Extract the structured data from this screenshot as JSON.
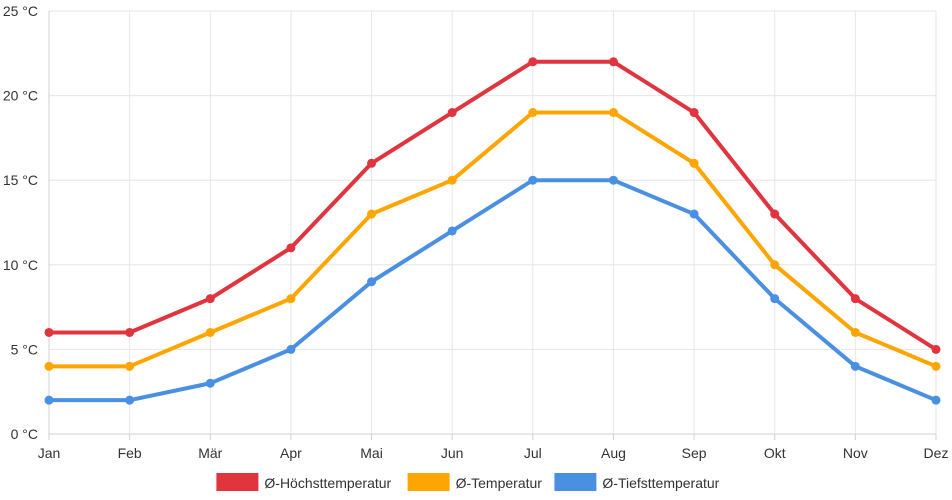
{
  "chart_data": {
    "type": "line",
    "title": "",
    "xlabel": "",
    "ylabel": "",
    "categories": [
      "Jan",
      "Feb",
      "Mär",
      "Apr",
      "Mai",
      "Jun",
      "Jul",
      "Aug",
      "Sep",
      "Okt",
      "Nov",
      "Dez"
    ],
    "ylim": [
      0,
      25
    ],
    "y_ticks": [
      0,
      5,
      10,
      15,
      20,
      25
    ],
    "y_tick_labels": [
      "0 °C",
      "5 °C",
      "10 °C",
      "15 °C",
      "20 °C",
      "25 °C"
    ],
    "grid": true,
    "legend_position": "bottom-center",
    "series": [
      {
        "name": "Ø-Höchsttemperatur",
        "color": "#e0343f",
        "values": [
          6,
          6,
          8,
          11,
          16,
          19,
          22,
          22,
          19,
          13,
          8,
          5
        ]
      },
      {
        "name": "Ø-Temperatur",
        "color": "#ffa500",
        "values": [
          4,
          4,
          6,
          8,
          13,
          15,
          19,
          19,
          16,
          10,
          6,
          4
        ]
      },
      {
        "name": "Ø-Tiefsttemperatur",
        "color": "#4a90e2",
        "values": [
          2,
          2,
          3,
          5,
          9,
          12,
          15,
          15,
          13,
          8,
          4,
          2
        ]
      }
    ]
  }
}
